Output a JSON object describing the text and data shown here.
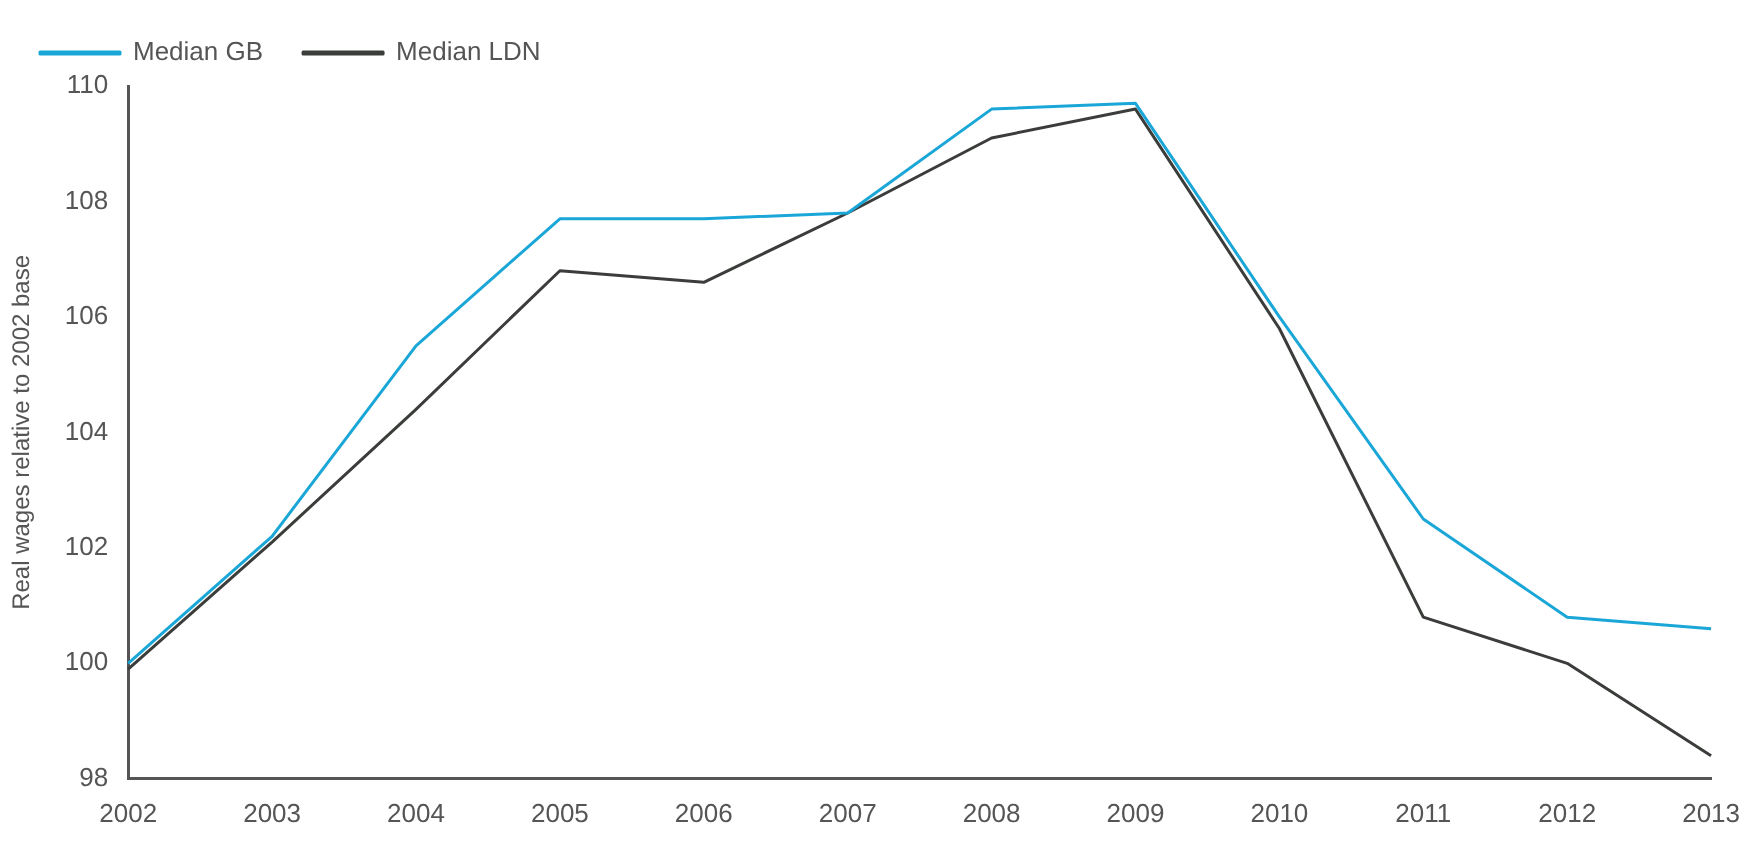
{
  "chart_data": {
    "type": "line",
    "ylabel": "Real wages relative to 2002 base",
    "categories": [
      "2002",
      "2003",
      "2004",
      "2005",
      "2006",
      "2007",
      "2008",
      "2009",
      "2010",
      "2011",
      "2012",
      "2013"
    ],
    "series": [
      {
        "name": "Median GB",
        "color": "#1aa7d8",
        "values": [
          100.0,
          102.2,
          105.5,
          107.7,
          107.7,
          107.8,
          109.6,
          109.7,
          106.0,
          102.5,
          100.8,
          100.6
        ]
      },
      {
        "name": "Median LDN",
        "color": "#3a3d3a",
        "values": [
          99.9,
          102.1,
          104.4,
          106.8,
          106.6,
          107.8,
          109.1,
          109.6,
          105.8,
          100.8,
          100.0,
          98.4
        ]
      }
    ],
    "ylim": [
      98,
      110
    ],
    "yticks": [
      98,
      100,
      102,
      104,
      106,
      108,
      110
    ],
    "grid": false,
    "legend": "top left",
    "marker": "none",
    "line_style": "solid"
  }
}
